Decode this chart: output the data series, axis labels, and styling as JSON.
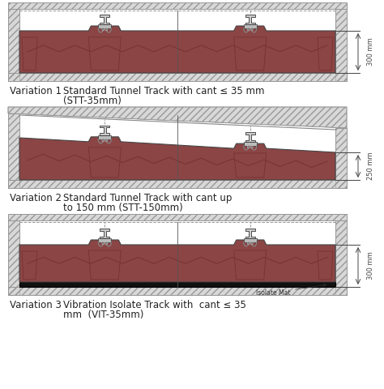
{
  "background_color": "#ffffff",
  "track_fill_color": "#8B4545",
  "hatch_face_color": "#d0d0d0",
  "hatch_edge_color": "#888888",
  "line_color": "#333333",
  "dim_color": "#444444",
  "variation1_label": "Variation 1",
  "variation1_desc1": "Standard Tunnel Track with cant ≤ 35 mm",
  "variation1_desc2": "(STT-35mm)",
  "variation2_label": "Variation 2",
  "variation2_desc1": "Standard Tunnel Track with cant up",
  "variation2_desc2": "to 150 mm (STT-150mm)",
  "variation3_label": "Variation 3",
  "variation3_desc1": "Vibration Isolate Track with  cant ≤ 35",
  "variation3_desc2": "mm  (VIT-35mm)",
  "dim1": "300 mm",
  "dim2": "250 mm",
  "dim3": "300 mm",
  "isolate_label": "Isolate Mat",
  "label_fontsize": 8.5,
  "desc_fontsize": 8.5
}
